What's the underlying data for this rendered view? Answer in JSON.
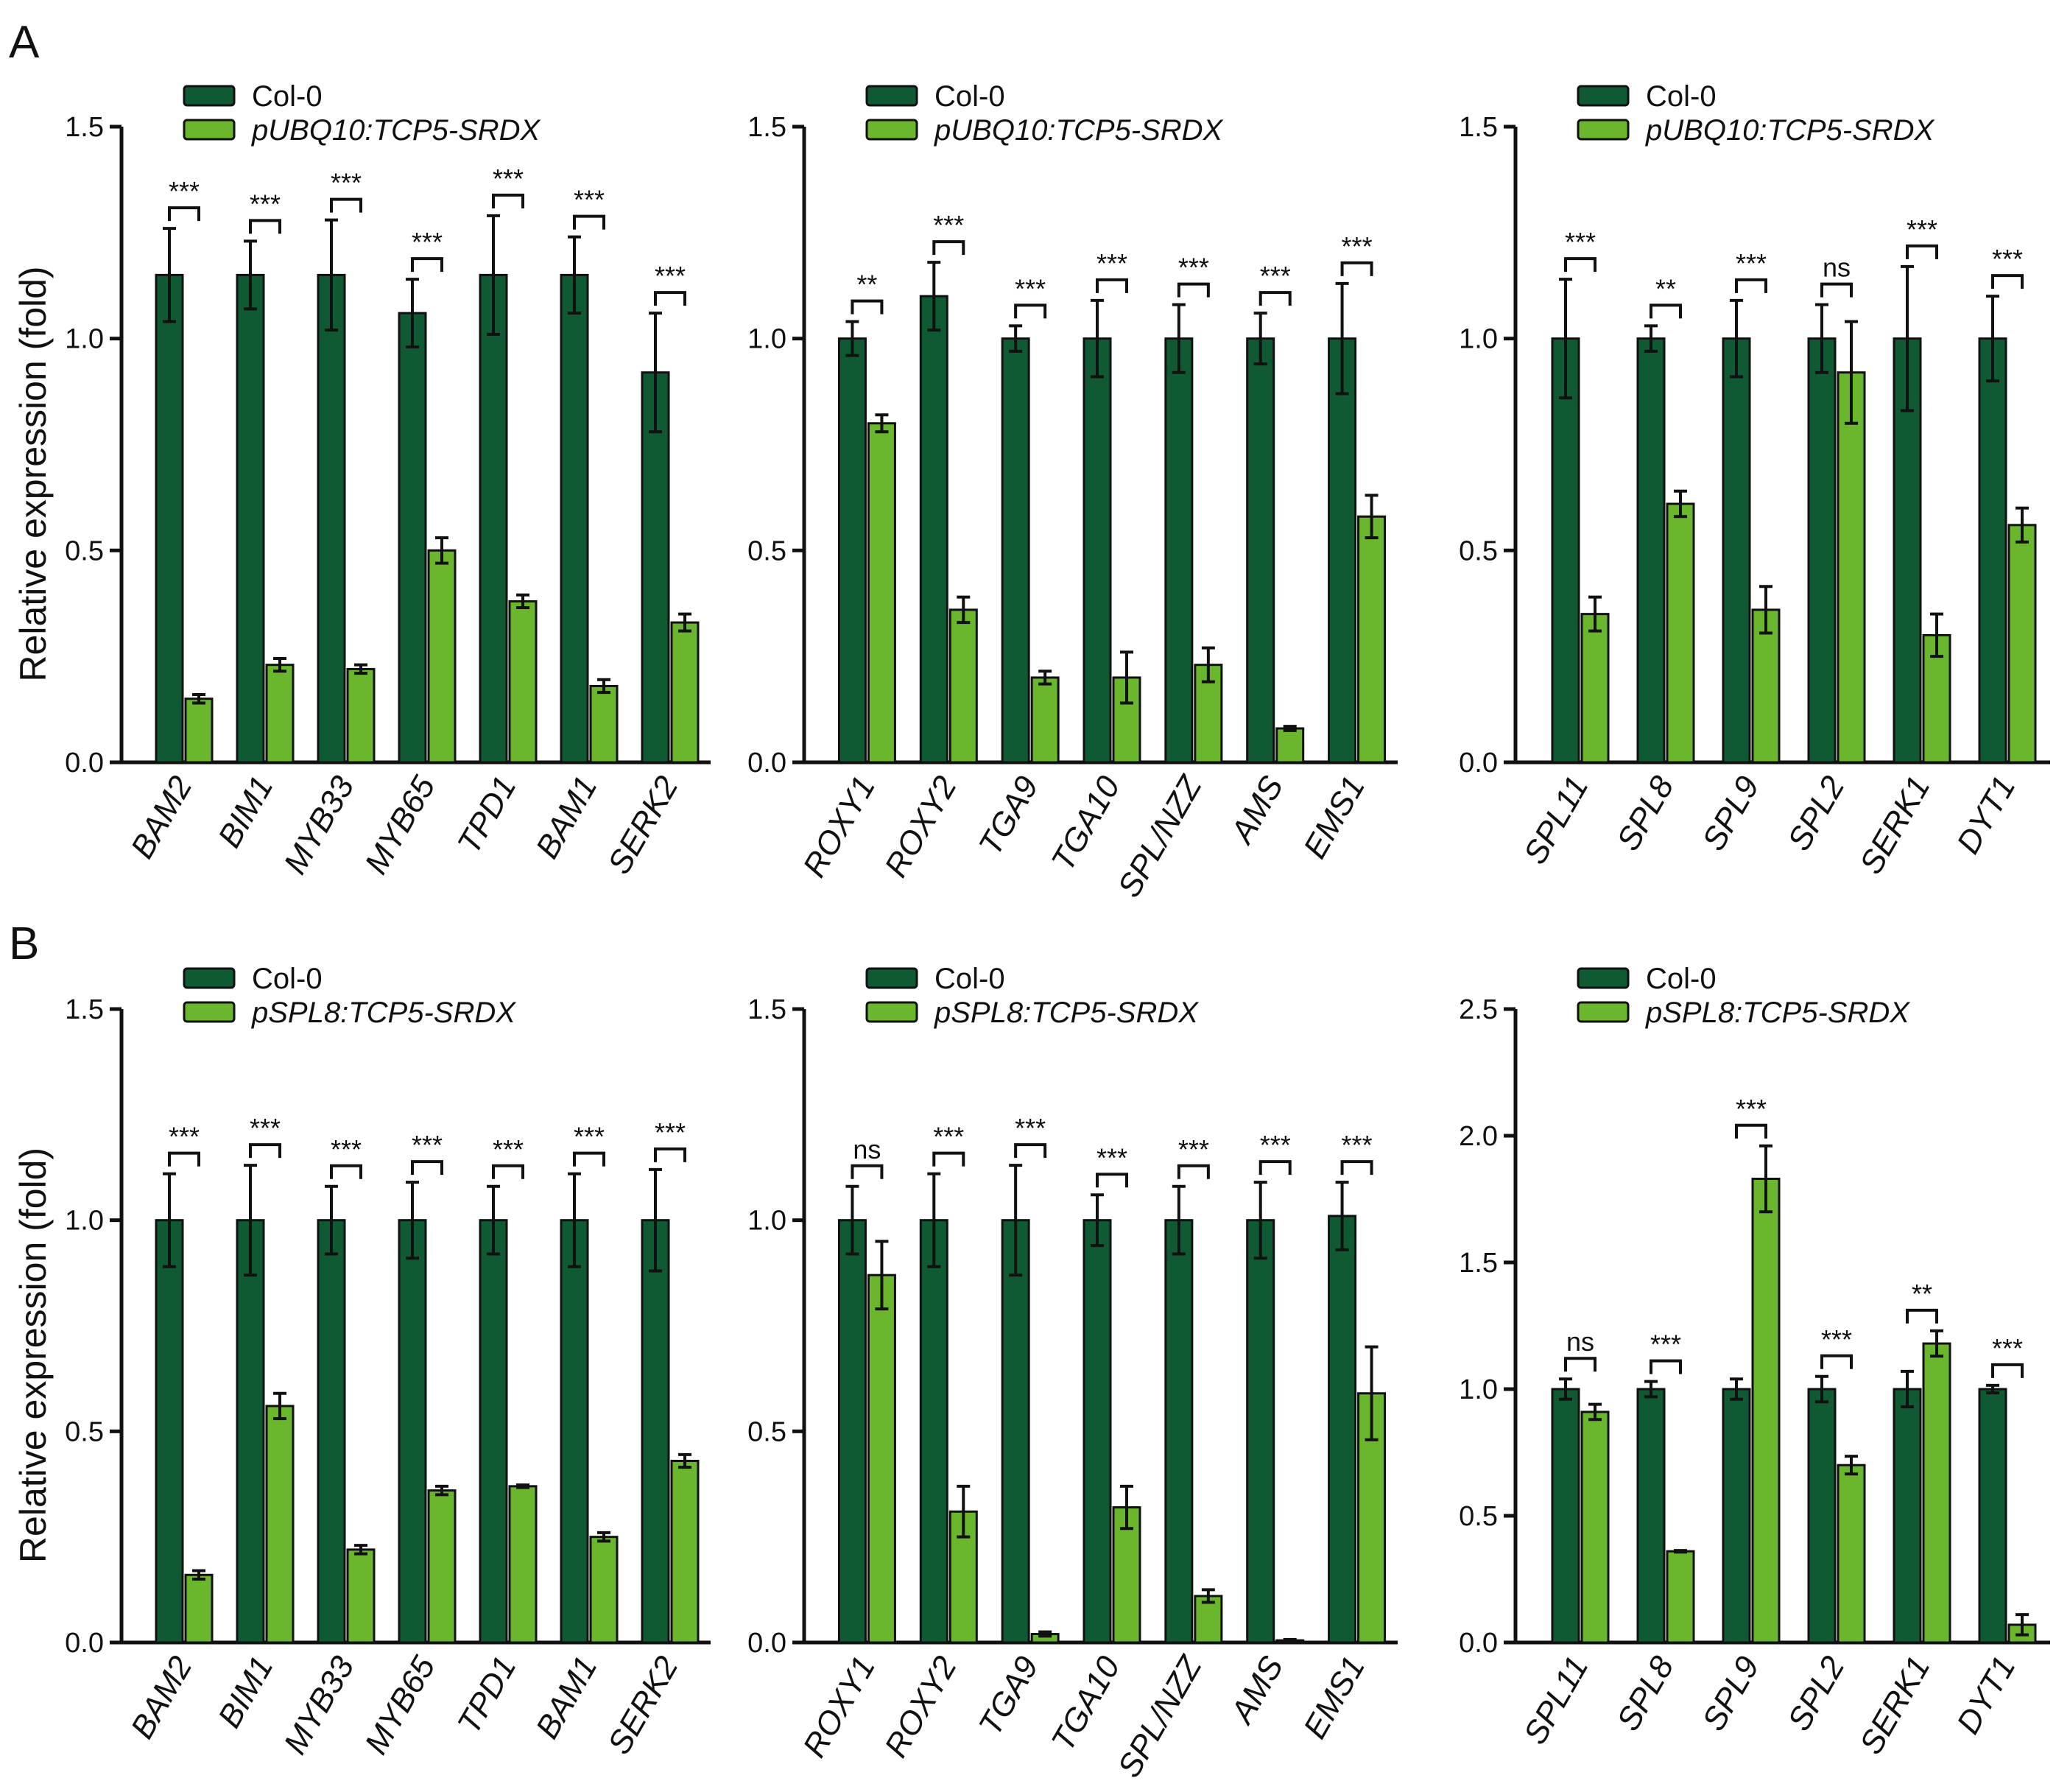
{
  "panel_labels": [
    "A",
    "B"
  ],
  "colors": {
    "col0": "#0f5a32",
    "mutant": "#6ab72e"
  },
  "chart_data": [
    {
      "type": "bar",
      "panel": "A",
      "ylabel": "Relative expression (fold)",
      "ylim": [
        0,
        1.5
      ],
      "yticks": [
        "0.0",
        "0.5",
        "1.0",
        "1.5"
      ],
      "categories": [
        "BAM2",
        "BIM1",
        "MYB33",
        "MYB65",
        "TPD1",
        "BAM1",
        "SERK2"
      ],
      "series": [
        {
          "name": "Col-0",
          "values": [
            1.15,
            1.15,
            1.15,
            1.06,
            1.15,
            1.15,
            0.92
          ],
          "errors": [
            0.11,
            0.08,
            0.13,
            0.08,
            0.14,
            0.09,
            0.14
          ]
        },
        {
          "name": "pUBQ10:TCP5-SRDX",
          "values": [
            0.15,
            0.23,
            0.22,
            0.5,
            0.38,
            0.18,
            0.33
          ],
          "errors": [
            0.01,
            0.015,
            0.01,
            0.03,
            0.015,
            0.015,
            0.02
          ]
        }
      ],
      "significance": [
        "***",
        "***",
        "***",
        "***",
        "***",
        "***",
        "***"
      ]
    },
    {
      "type": "bar",
      "panel": "A",
      "ylim": [
        0,
        1.5
      ],
      "yticks": [
        "0.0",
        "0.5",
        "1.0",
        "1.5"
      ],
      "categories": [
        "ROXY1",
        "ROXY2",
        "TGA9",
        "TGA10",
        "SPL/NZZ",
        "AMS",
        "EMS1"
      ],
      "series": [
        {
          "name": "Col-0",
          "values": [
            1.0,
            1.1,
            1.0,
            1.0,
            1.0,
            1.0,
            1.0
          ],
          "errors": [
            0.04,
            0.08,
            0.03,
            0.09,
            0.08,
            0.06,
            0.13
          ]
        },
        {
          "name": "pUBQ10:TCP5-SRDX",
          "values": [
            0.8,
            0.36,
            0.2,
            0.2,
            0.23,
            0.08,
            0.58
          ],
          "errors": [
            0.02,
            0.03,
            0.015,
            0.06,
            0.04,
            0.005,
            0.05
          ]
        }
      ],
      "significance": [
        "**",
        "***",
        "***",
        "***",
        "***",
        "***",
        "***"
      ]
    },
    {
      "type": "bar",
      "panel": "A",
      "ylim": [
        0,
        1.5
      ],
      "yticks": [
        "0.0",
        "0.5",
        "1.0",
        "1.5"
      ],
      "categories": [
        "SPL11",
        "SPL8",
        "SPL9",
        "SPL2",
        "SERK1",
        "DYT1"
      ],
      "series": [
        {
          "name": "Col-0",
          "values": [
            1.0,
            1.0,
            1.0,
            1.0,
            1.0,
            1.0
          ],
          "errors": [
            0.14,
            0.03,
            0.09,
            0.08,
            0.17,
            0.1
          ]
        },
        {
          "name": "pUBQ10:TCP5-SRDX",
          "values": [
            0.35,
            0.61,
            0.36,
            0.92,
            0.3,
            0.56
          ],
          "errors": [
            0.04,
            0.03,
            0.055,
            0.12,
            0.05,
            0.04
          ]
        }
      ],
      "significance": [
        "***",
        "**",
        "***",
        "ns",
        "***",
        "***"
      ]
    },
    {
      "type": "bar",
      "panel": "B",
      "ylabel": "Relative expression (fold)",
      "ylim": [
        0,
        1.5
      ],
      "yticks": [
        "0.0",
        "0.5",
        "1.0",
        "1.5"
      ],
      "categories": [
        "BAM2",
        "BIM1",
        "MYB33",
        "MYB65",
        "TPD1",
        "BAM1",
        "SERK2"
      ],
      "series": [
        {
          "name": "Col-0",
          "values": [
            1.0,
            1.0,
            1.0,
            1.0,
            1.0,
            1.0,
            1.0
          ],
          "errors": [
            0.11,
            0.13,
            0.08,
            0.09,
            0.08,
            0.11,
            0.12
          ]
        },
        {
          "name": "pSPL8:TCP5-SRDX",
          "values": [
            0.16,
            0.56,
            0.22,
            0.36,
            0.37,
            0.25,
            0.43
          ],
          "errors": [
            0.01,
            0.03,
            0.01,
            0.01,
            0.003,
            0.01,
            0.015
          ]
        }
      ],
      "significance": [
        "***",
        "***",
        "***",
        "***",
        "***",
        "***",
        "***"
      ]
    },
    {
      "type": "bar",
      "panel": "B",
      "ylim": [
        0,
        1.5
      ],
      "yticks": [
        "0.0",
        "0.5",
        "1.0",
        "1.5"
      ],
      "categories": [
        "ROXY1",
        "ROXY2",
        "TGA9",
        "TGA10",
        "SPL/NZZ",
        "AMS",
        "EMS1"
      ],
      "series": [
        {
          "name": "Col-0",
          "values": [
            1.0,
            1.0,
            1.0,
            1.0,
            1.0,
            1.0,
            1.01
          ],
          "errors": [
            0.08,
            0.11,
            0.13,
            0.06,
            0.08,
            0.09,
            0.08
          ]
        },
        {
          "name": "pSPL8:TCP5-SRDX",
          "values": [
            0.87,
            0.31,
            0.02,
            0.32,
            0.11,
            0.005,
            0.59
          ],
          "errors": [
            0.08,
            0.06,
            0.005,
            0.05,
            0.015,
            0.002,
            0.11
          ]
        }
      ],
      "significance": [
        "ns",
        "***",
        "***",
        "***",
        "***",
        "***",
        "***"
      ]
    },
    {
      "type": "bar",
      "panel": "B",
      "ylim": [
        0,
        2.5
      ],
      "yticks": [
        "0.0",
        "0.5",
        "1.0",
        "1.5",
        "2.0",
        "2.5"
      ],
      "categories": [
        "SPL11",
        "SPL8",
        "SPL9",
        "SPL2",
        "SERK1",
        "DYT1"
      ],
      "series": [
        {
          "name": "Col-0",
          "values": [
            1.0,
            1.0,
            1.0,
            1.0,
            1.0,
            1.0
          ],
          "errors": [
            0.04,
            0.03,
            0.04,
            0.05,
            0.07,
            0.015
          ]
        },
        {
          "name": "pSPL8:TCP5-SRDX",
          "values": [
            0.91,
            0.36,
            1.83,
            0.7,
            1.18,
            0.07
          ],
          "errors": [
            0.03,
            0.003,
            0.13,
            0.035,
            0.05,
            0.04
          ]
        }
      ],
      "significance": [
        "ns",
        "***",
        "***",
        "***",
        "**",
        "***"
      ]
    }
  ]
}
